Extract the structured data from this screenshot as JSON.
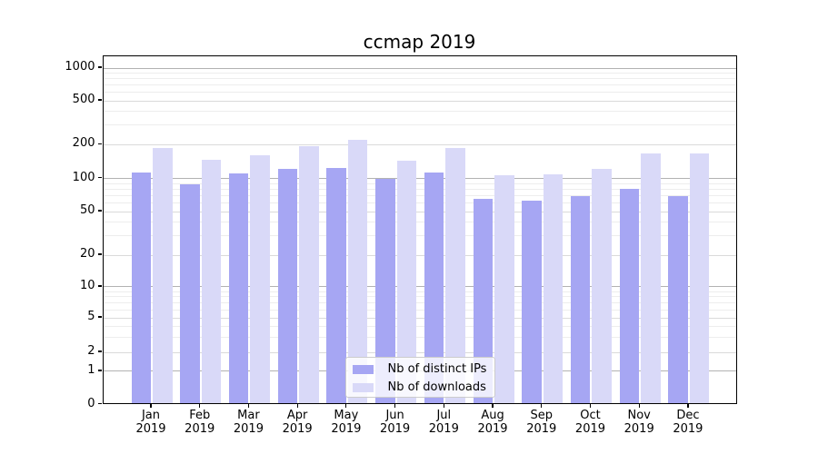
{
  "chart_data": {
    "type": "bar",
    "title": "ccmap 2019",
    "categories": [
      "Jan 2019",
      "Feb 2019",
      "Mar 2019",
      "Apr 2019",
      "May 2019",
      "Jun 2019",
      "Jul 2019",
      "Aug 2019",
      "Sep 2019",
      "Oct 2019",
      "Nov 2019",
      "Dec 2019"
    ],
    "series": [
      {
        "name": "Nb of distinct IPs",
        "color": "#a6a6f3",
        "values": [
          110,
          85,
          107,
          118,
          119,
          96,
          110,
          63,
          60,
          66,
          78,
          67
        ]
      },
      {
        "name": "Nb of downloads",
        "color": "#d9d9f8",
        "values": [
          181,
          141,
          156,
          186,
          212,
          139,
          179,
          104,
          105,
          117,
          161,
          161
        ]
      }
    ],
    "y_axis": {
      "scale": "log-with-zero-baseline",
      "ticks": [
        0,
        1,
        2,
        5,
        10,
        20,
        50,
        100,
        200,
        500,
        1000
      ],
      "minor_gridline_values": [
        3,
        4,
        6,
        7,
        8,
        9,
        30,
        40,
        60,
        70,
        80,
        90,
        300,
        400,
        600,
        700,
        800,
        900
      ]
    },
    "legend": {
      "position": "lower center"
    },
    "grid": true
  },
  "colors": {
    "decade_gridline": "#b2b2b2",
    "major_gridline": "#dadada",
    "minor_gridline": "#ededed",
    "axis_spine": "#000000",
    "legend_border": "#cccccc"
  }
}
